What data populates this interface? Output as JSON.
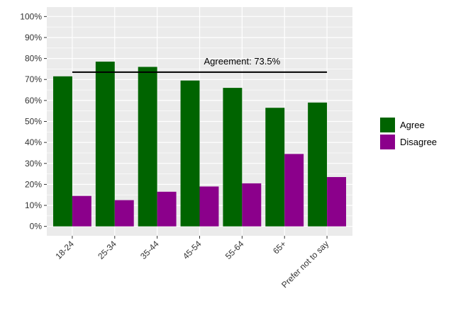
{
  "chart_data": {
    "type": "bar",
    "title": "",
    "xlabel": "",
    "ylabel": "",
    "categories": [
      "18-24",
      "25-34",
      "35-44",
      "45-54",
      "55-64",
      "65+",
      "Prefer not to say"
    ],
    "series": [
      {
        "name": "Agree",
        "color": "#006400",
        "values": [
          71.5,
          78.5,
          76,
          69.5,
          66,
          56.5,
          59
        ]
      },
      {
        "name": "Disagree",
        "color": "#8B008B",
        "values": [
          14.5,
          12.5,
          16.5,
          19,
          20.5,
          34.5,
          23.5
        ]
      }
    ],
    "ylim": [
      0,
      100
    ],
    "yticks": [
      0,
      10,
      20,
      30,
      40,
      50,
      60,
      70,
      80,
      90,
      100
    ],
    "ytick_labels": [
      "0%",
      "10%",
      "20%",
      "30%",
      "40%",
      "50%",
      "60%",
      "70%",
      "80%",
      "90%",
      "100%"
    ],
    "grid": true,
    "panel_background": "#EBEBEB",
    "legend_position": "right",
    "reference_line": {
      "value": 73.5,
      "label": "Agreement:  73.5%",
      "color": "#000000"
    }
  }
}
